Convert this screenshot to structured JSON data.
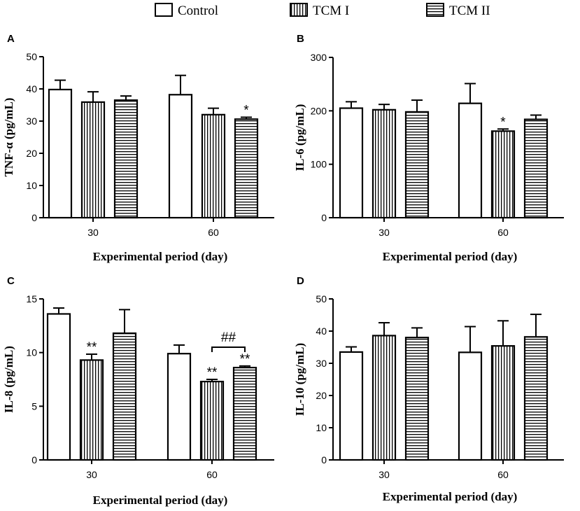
{
  "figure": {
    "legend": [
      {
        "name": "Control",
        "pattern": "none"
      },
      {
        "name": "TCM I",
        "pattern": "vertical"
      },
      {
        "name": "TCM II",
        "pattern": "horizontal"
      }
    ]
  },
  "chart_data": [
    {
      "panel": "A",
      "type": "bar",
      "categories": [
        "30",
        "60"
      ],
      "xlabel": "Experimental period (day)",
      "ylabel": "TNF-α (pg/mL)",
      "ylim": [
        0,
        50
      ],
      "yticks": [
        0,
        10,
        20,
        30,
        40,
        50
      ],
      "series": [
        {
          "name": "Control",
          "values": [
            39.8,
            38.2
          ],
          "errors": [
            2.9,
            6.0
          ]
        },
        {
          "name": "TCM I",
          "values": [
            35.9,
            32.0
          ],
          "errors": [
            3.2,
            2.0
          ]
        },
        {
          "name": "TCM II",
          "values": [
            36.5,
            30.6
          ],
          "errors": [
            1.3,
            0.6
          ]
        }
      ],
      "annotations": [
        {
          "text": "*",
          "category": 1,
          "series": 2
        }
      ]
    },
    {
      "panel": "B",
      "type": "bar",
      "categories": [
        "30",
        "60"
      ],
      "xlabel": "Experimental period (day)",
      "ylabel": "IL-6 (pg/mL)",
      "ylim": [
        0,
        300
      ],
      "yticks": [
        0,
        100,
        200,
        300
      ],
      "series": [
        {
          "name": "Control",
          "values": [
            205,
            214
          ],
          "errors": [
            12,
            37
          ]
        },
        {
          "name": "TCM I",
          "values": [
            202,
            162
          ],
          "errors": [
            10,
            4
          ]
        },
        {
          "name": "TCM II",
          "values": [
            198,
            184
          ],
          "errors": [
            22,
            8
          ]
        }
      ],
      "annotations": [
        {
          "text": "*",
          "category": 1,
          "series": 1
        }
      ]
    },
    {
      "panel": "C",
      "type": "bar",
      "categories": [
        "30",
        "60"
      ],
      "xlabel": "Experimental period (day)",
      "ylabel": "IL-8 (pg/mL)",
      "ylim": [
        0,
        15
      ],
      "yticks": [
        0,
        5,
        10,
        15
      ],
      "series": [
        {
          "name": "Control",
          "values": [
            13.6,
            9.9
          ],
          "errors": [
            0.55,
            0.8
          ]
        },
        {
          "name": "TCM I",
          "values": [
            9.3,
            7.3
          ],
          "errors": [
            0.55,
            0.2
          ]
        },
        {
          "name": "TCM II",
          "values": [
            11.8,
            8.6
          ],
          "errors": [
            2.2,
            0.15
          ]
        }
      ],
      "annotations": [
        {
          "text": "**",
          "category": 0,
          "series": 1
        },
        {
          "text": "**",
          "category": 1,
          "series": 1
        },
        {
          "text": "**",
          "category": 1,
          "series": 2
        }
      ],
      "brackets": [
        {
          "text": "##",
          "category": 1,
          "from_series": 1,
          "to_series": 2,
          "y": 10.5
        }
      ]
    },
    {
      "panel": "D",
      "type": "bar",
      "categories": [
        "30",
        "60"
      ],
      "xlabel": "Experimental period (day)",
      "ylabel": "IL-10 (pg/mL)",
      "ylim": [
        0,
        50
      ],
      "yticks": [
        0,
        10,
        20,
        30,
        40,
        50
      ],
      "series": [
        {
          "name": "Control",
          "values": [
            33.5,
            33.4
          ],
          "errors": [
            1.6,
            8.0
          ]
        },
        {
          "name": "TCM I",
          "values": [
            38.6,
            35.4
          ],
          "errors": [
            4.0,
            7.8
          ]
        },
        {
          "name": "TCM II",
          "values": [
            38.0,
            38.2
          ],
          "errors": [
            3.0,
            7.0
          ]
        }
      ],
      "annotations": []
    }
  ]
}
